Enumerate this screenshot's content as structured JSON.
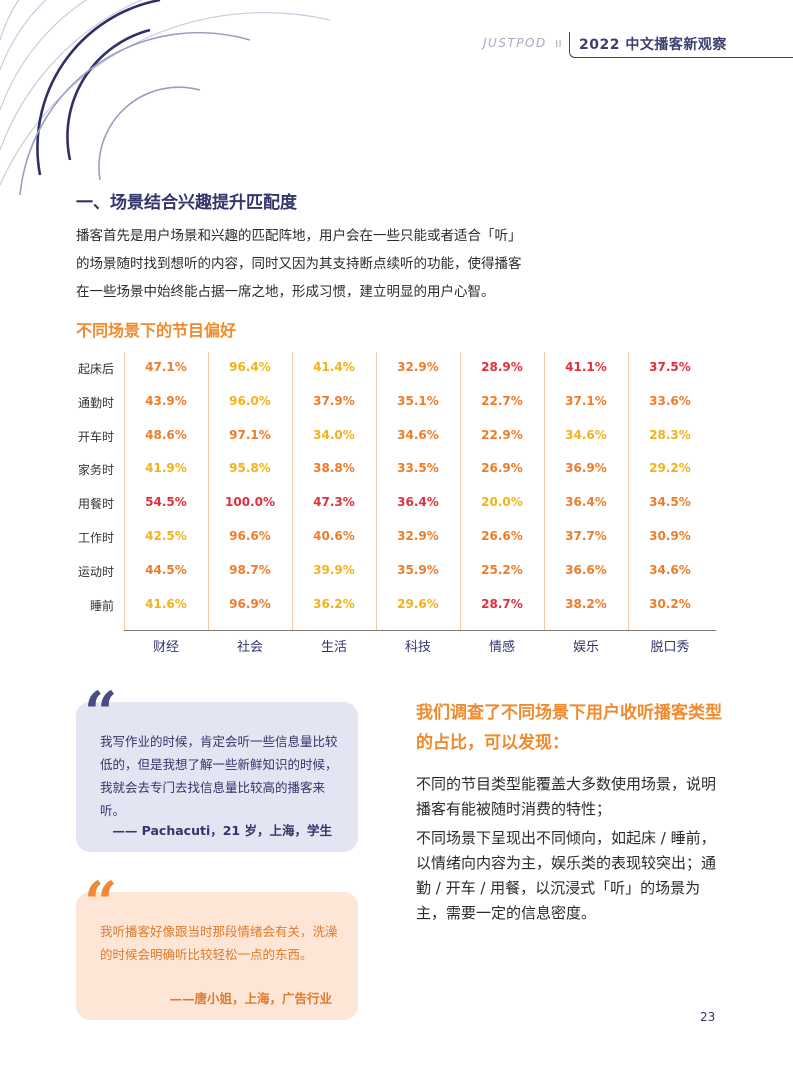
{
  "header": {
    "brand": "JUSTPOD",
    "title": "2022 中文播客新观察"
  },
  "section_title": "一、场景结合兴趣提升匹配度",
  "intro_lines": [
    "播客首先是用户场景和兴趣的匹配阵地，用户会在一些只能或者适合「听」",
    "的场景随时找到想听的内容，同时又因为其支持断点续听的功能，使得播客",
    "在一些场景中始终能占据一席之地，形成习惯，建立明显的用户心智。"
  ],
  "table_title": "不同场景下的节目偏好",
  "chart_data": {
    "type": "table",
    "title": "不同场景下的节目偏好",
    "columns": [
      "财经",
      "社会",
      "生活",
      "科技",
      "情感",
      "娱乐",
      "脱口秀"
    ],
    "rows": [
      {
        "label": "起床后",
        "values": [
          "47.1%",
          "96.4%",
          "41.4%",
          "32.9%",
          "28.9%",
          "41.1%",
          "37.5%"
        ],
        "tones": [
          "orange",
          "yellow",
          "yellow",
          "orange",
          "red",
          "red",
          "red"
        ]
      },
      {
        "label": "通勤时",
        "values": [
          "43.9%",
          "96.0%",
          "37.9%",
          "35.1%",
          "22.7%",
          "37.1%",
          "33.6%"
        ],
        "tones": [
          "orange",
          "yellow",
          "orange",
          "orange",
          "orange",
          "orange",
          "orange"
        ]
      },
      {
        "label": "开车时",
        "values": [
          "48.6%",
          "97.1%",
          "34.0%",
          "34.6%",
          "22.9%",
          "34.6%",
          "28.3%"
        ],
        "tones": [
          "orange",
          "orange",
          "yellow",
          "orange",
          "orange",
          "yellow",
          "yellow"
        ]
      },
      {
        "label": "家务时",
        "values": [
          "41.9%",
          "95.8%",
          "38.8%",
          "33.5%",
          "26.9%",
          "36.9%",
          "29.2%"
        ],
        "tones": [
          "yellow",
          "yellow",
          "orange",
          "orange",
          "orange",
          "orange",
          "yellow"
        ]
      },
      {
        "label": "用餐时",
        "values": [
          "54.5%",
          "100.0%",
          "47.3%",
          "36.4%",
          "20.0%",
          "36.4%",
          "34.5%"
        ],
        "tones": [
          "red",
          "red",
          "red",
          "red",
          "yellow",
          "orange",
          "orange"
        ]
      },
      {
        "label": "工作时",
        "values": [
          "42.5%",
          "96.6%",
          "40.6%",
          "32.9%",
          "26.6%",
          "37.7%",
          "30.9%"
        ],
        "tones": [
          "yellow",
          "orange",
          "orange",
          "orange",
          "orange",
          "orange",
          "orange"
        ]
      },
      {
        "label": "运动时",
        "values": [
          "44.5%",
          "98.7%",
          "39.9%",
          "35.9%",
          "25.2%",
          "36.6%",
          "34.6%"
        ],
        "tones": [
          "orange",
          "orange",
          "yellow",
          "orange",
          "orange",
          "orange",
          "orange"
        ]
      },
      {
        "label": "睡前",
        "values": [
          "41.6%",
          "96.9%",
          "36.2%",
          "29.6%",
          "28.7%",
          "38.2%",
          "30.2%"
        ],
        "tones": [
          "yellow",
          "orange",
          "yellow",
          "yellow",
          "red",
          "orange",
          "orange"
        ]
      }
    ],
    "colors": {
      "red": "#e0303a",
      "orange": "#ee7c2a",
      "yellow": "#f2b21a"
    }
  },
  "quotes": [
    {
      "mark": "“",
      "text": "我写作业的时候，肯定会听一些信息量比较低的，但是我想了解一些新鲜知识的时候，我就会去专门去找信息量比较高的播客来听。",
      "source": "—— Pachacuti，21 岁，上海，学生"
    },
    {
      "mark": "“",
      "text": "我听播客好像跟当时那段情绪会有关，洗澡的时候会明确听比较轻松一点的东西。",
      "source": "——唐小姐，上海，广告行业"
    }
  ],
  "findings": {
    "heading": "我们调查了不同场景下用户收听播客类型的占比，可以发现：",
    "paragraphs": [
      "不同的节目类型能覆盖大多数使用场景，说明播客有能被随时消费的特性；",
      "不同场景下呈现出不同倾向，如起床 / 睡前，以情绪向内容为主，娱乐类的表现较突出；通勤 / 开车 / 用餐，以沉浸式「听」的场景为主，需要一定的信息密度。"
    ]
  },
  "page_number": "23"
}
